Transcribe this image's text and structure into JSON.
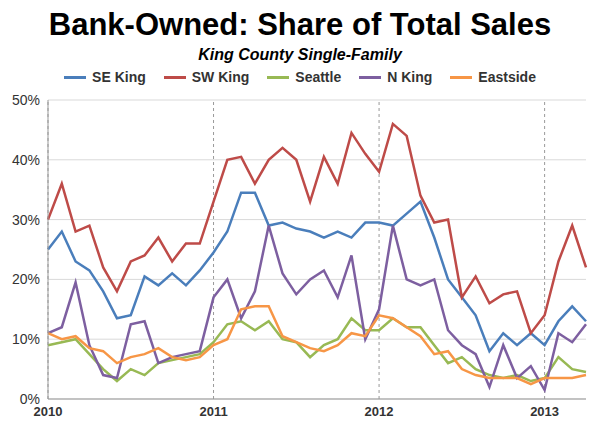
{
  "chart_data": {
    "type": "line",
    "title": "Bank-Owned: Share of Total Sales",
    "subtitle": "King County Single-Family",
    "categories": [
      "2010",
      null,
      null,
      null,
      null,
      null,
      null,
      null,
      null,
      null,
      null,
      null,
      "2011",
      null,
      null,
      null,
      null,
      null,
      null,
      null,
      null,
      null,
      null,
      null,
      "2012",
      null,
      null,
      null,
      null,
      null,
      null,
      null,
      null,
      null,
      null,
      null,
      "2013",
      null,
      null,
      null
    ],
    "series": [
      {
        "name": "SE King",
        "color": "#4a7ebb",
        "values": [
          25,
          28,
          23,
          21.5,
          18,
          13.5,
          14,
          20.5,
          19,
          21,
          19,
          21.5,
          24.5,
          28,
          34.5,
          34.5,
          29,
          29.5,
          28.5,
          28,
          27,
          28,
          27,
          29.5,
          29.5,
          29,
          31,
          33,
          27,
          20,
          17,
          14,
          8,
          11,
          9,
          11,
          9,
          13,
          15.5,
          13
        ]
      },
      {
        "name": "SW King",
        "color": "#be4b48",
        "values": [
          30,
          36,
          28,
          29,
          22,
          18,
          23,
          24,
          27,
          23,
          26,
          26,
          33,
          40,
          40.5,
          36,
          40,
          42,
          40,
          33,
          40.5,
          36,
          44.5,
          41,
          38,
          46,
          44,
          34,
          29.5,
          30,
          17,
          20.5,
          16,
          17.5,
          18,
          11,
          14,
          23,
          29,
          22
        ]
      },
      {
        "name": "Seattle",
        "color": "#98b954",
        "values": [
          9,
          9.5,
          10,
          7.5,
          5,
          3,
          5,
          4,
          6,
          6.5,
          7,
          7.5,
          9.5,
          12.5,
          13,
          11.5,
          13,
          10,
          9.5,
          7,
          9,
          10,
          13.5,
          11.5,
          11.5,
          13.5,
          12,
          12,
          9,
          6,
          7,
          5,
          4,
          3.5,
          4,
          3,
          3.5,
          7,
          5,
          4.5
        ]
      },
      {
        "name": "N King",
        "color": "#7d5fa0",
        "values": [
          11,
          12,
          19.5,
          9,
          4,
          3.5,
          12.5,
          13,
          6,
          7,
          7.5,
          8,
          17,
          20,
          13.5,
          18,
          29,
          21,
          17.5,
          20,
          21.5,
          17,
          24,
          10,
          15,
          29,
          20,
          19,
          20,
          11.5,
          9,
          7.5,
          2,
          9,
          3.5,
          5.5,
          1.5,
          11,
          9.5,
          12.5
        ]
      },
      {
        "name": "Eastside",
        "color": "#f79646",
        "values": [
          11,
          10,
          10.5,
          8.5,
          8,
          6,
          7,
          7.5,
          8.5,
          7,
          6.5,
          7,
          9,
          10,
          15,
          15.5,
          15.5,
          10.5,
          9.5,
          8.5,
          8,
          9,
          11,
          10.5,
          14,
          13.5,
          12,
          10.5,
          7.5,
          8,
          5,
          4,
          3.5,
          3.5,
          3.5,
          2.5,
          3.5,
          3.5,
          3.5,
          4
        ]
      }
    ],
    "ylim": [
      0,
      50
    ],
    "yticks": [
      {
        "value": 0,
        "label": "0%"
      },
      {
        "value": 10,
        "label": "10%"
      },
      {
        "value": 20,
        "label": "20%"
      },
      {
        "value": 30,
        "label": "30%"
      },
      {
        "value": 40,
        "label": "40%"
      },
      {
        "value": 50,
        "label": "50%"
      }
    ],
    "grid": true,
    "legend": "top"
  }
}
